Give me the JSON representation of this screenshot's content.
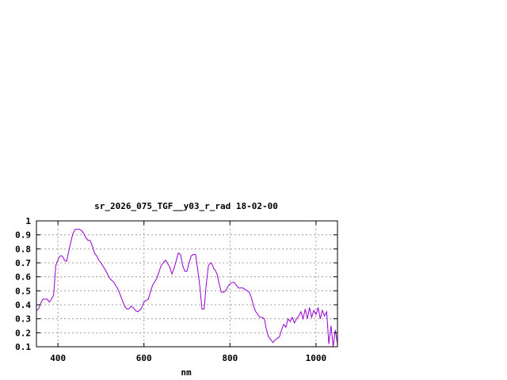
{
  "chart_data": {
    "type": "line",
    "title": "sr_2026_075_TGF__y03_r_rad 18-02-00",
    "xlabel": "nm",
    "ylabel": "",
    "xlim": [
      350,
      1050
    ],
    "ylim": [
      0.1,
      1.0
    ],
    "xticks": [
      400,
      600,
      800,
      1000
    ],
    "yticks": [
      0.1,
      0.2,
      0.3,
      0.4,
      0.5,
      0.6,
      0.7,
      0.8,
      0.9,
      1.0
    ],
    "xtick_labels": [
      "400",
      "600",
      "800",
      "1000"
    ],
    "ytick_labels": [
      "0.1",
      "0.2",
      "0.3",
      "0.4",
      "0.5",
      "0.6",
      "0.7",
      "0.8",
      "0.9",
      "1"
    ],
    "grid": true,
    "series": [
      {
        "color": "#9400d3",
        "x": [
          350,
          355,
          360,
          365,
          370,
          375,
          380,
          385,
          390,
          395,
          400,
          405,
          410,
          415,
          420,
          425,
          430,
          435,
          440,
          445,
          450,
          455,
          460,
          465,
          470,
          475,
          480,
          485,
          490,
          495,
          500,
          510,
          520,
          530,
          540,
          550,
          555,
          560,
          565,
          570,
          575,
          580,
          585,
          590,
          595,
          600,
          610,
          620,
          630,
          640,
          650,
          660,
          665,
          670,
          680,
          685,
          690,
          695,
          700,
          705,
          710,
          715,
          720,
          725,
          730,
          735,
          740,
          745,
          750,
          755,
          758,
          760,
          762,
          765,
          770,
          775,
          780,
          785,
          790,
          795,
          800,
          805,
          810,
          815,
          820,
          825,
          830,
          835,
          840,
          845,
          850,
          855,
          860,
          865,
          870,
          875,
          880,
          885,
          890,
          895,
          900,
          905,
          910,
          915,
          920,
          925,
          930,
          935,
          940,
          945,
          950,
          955,
          960,
          965,
          970,
          975,
          980,
          985,
          990,
          995,
          1000,
          1005,
          1010,
          1015,
          1020,
          1025,
          1030,
          1035,
          1040,
          1045,
          1050
        ],
        "y": [
          0.36,
          0.37,
          0.41,
          0.44,
          0.44,
          0.44,
          0.42,
          0.44,
          0.47,
          0.68,
          0.72,
          0.75,
          0.75,
          0.72,
          0.71,
          0.78,
          0.85,
          0.91,
          0.94,
          0.94,
          0.94,
          0.93,
          0.91,
          0.88,
          0.86,
          0.86,
          0.82,
          0.77,
          0.75,
          0.72,
          0.7,
          0.65,
          0.59,
          0.56,
          0.51,
          0.43,
          0.39,
          0.37,
          0.37,
          0.39,
          0.38,
          0.36,
          0.35,
          0.36,
          0.38,
          0.42,
          0.44,
          0.54,
          0.59,
          0.68,
          0.72,
          0.67,
          0.62,
          0.66,
          0.77,
          0.76,
          0.68,
          0.64,
          0.64,
          0.7,
          0.75,
          0.76,
          0.76,
          0.65,
          0.53,
          0.37,
          0.37,
          0.55,
          0.68,
          0.7,
          0.69,
          0.68,
          0.66,
          0.65,
          0.62,
          0.55,
          0.49,
          0.49,
          0.5,
          0.53,
          0.55,
          0.56,
          0.56,
          0.54,
          0.52,
          0.52,
          0.52,
          0.51,
          0.5,
          0.49,
          0.45,
          0.39,
          0.35,
          0.33,
          0.31,
          0.31,
          0.3,
          0.22,
          0.17,
          0.15,
          0.13,
          0.15,
          0.16,
          0.17,
          0.22,
          0.26,
          0.24,
          0.3,
          0.28,
          0.31,
          0.27,
          0.3,
          0.32,
          0.35,
          0.3,
          0.37,
          0.3,
          0.38,
          0.31,
          0.36,
          0.33,
          0.38,
          0.3,
          0.36,
          0.32,
          0.35,
          0.12,
          0.25,
          0.1,
          0.22,
          0.12
        ]
      }
    ]
  }
}
